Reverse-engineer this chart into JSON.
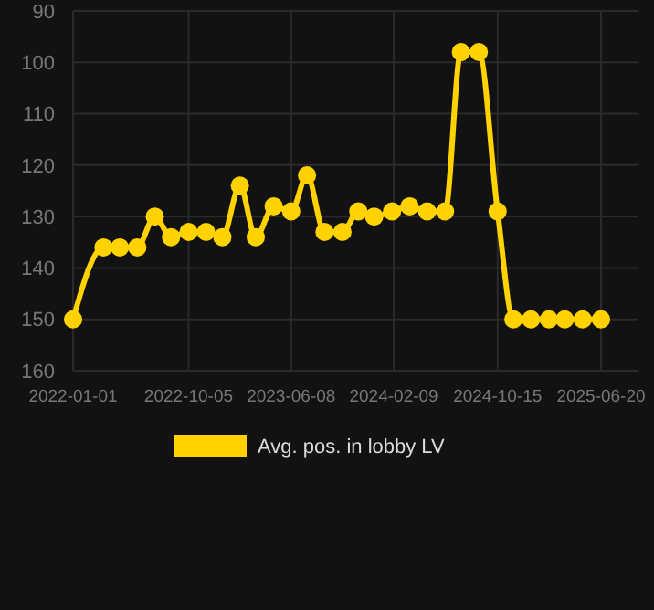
{
  "chart_data": {
    "type": "line",
    "x": [
      "2022-01-01",
      "2022-03-15",
      "2022-04-23",
      "2022-06-04",
      "2022-07-16",
      "2022-08-24",
      "2022-10-05",
      "2022-11-16",
      "2022-12-25",
      "2023-02-05",
      "2023-03-15",
      "2023-04-27",
      "2023-06-08",
      "2023-07-16",
      "2023-08-27",
      "2023-10-09",
      "2023-11-16",
      "2023-12-24",
      "2024-02-05",
      "2024-03-18",
      "2024-04-29",
      "2024-06-11",
      "2024-07-19",
      "2024-08-31",
      "2024-10-15",
      "2024-11-22",
      "2025-01-03",
      "2025-02-15",
      "2025-03-25",
      "2025-05-07",
      "2025-06-20"
    ],
    "series": [
      {
        "name": "Avg. pos. in lobby LV",
        "color": "#ffd200",
        "values": [
          150,
          136,
          136,
          136,
          130,
          134,
          133,
          133,
          134,
          124,
          134,
          128,
          129,
          122,
          133,
          133,
          129,
          130,
          129,
          128,
          129,
          129,
          98,
          98,
          129,
          150,
          150,
          150,
          150,
          150,
          150
        ]
      }
    ],
    "ylim": [
      160,
      90
    ],
    "yticks": [
      90,
      100,
      110,
      120,
      130,
      140,
      150,
      160
    ],
    "xlim": [
      "2022-01-01",
      "2025-06-20"
    ],
    "xticks": [
      "2022-01-01",
      "2022-10-05",
      "2023-06-08",
      "2024-02-09",
      "2024-10-15",
      "2025-06-20"
    ],
    "grid": true,
    "legend": "bottom",
    "marker": "circle",
    "line_style": "solid"
  }
}
